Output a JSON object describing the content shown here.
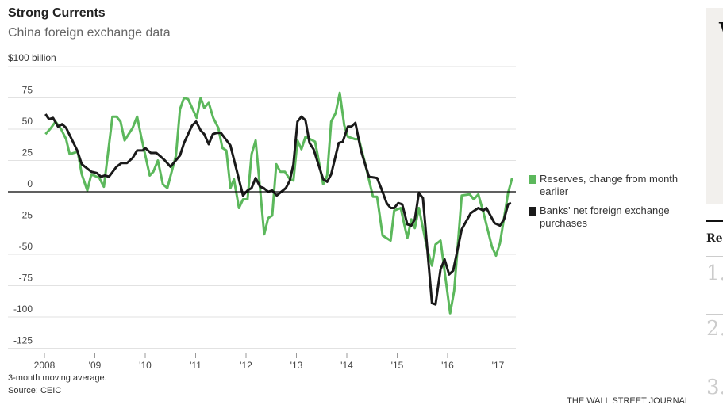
{
  "chart_data": {
    "type": "line",
    "title": "Strong Currents",
    "subtitle": "China foreign exchange data",
    "ylabel": "$100 billion",
    "ylim": [
      -125,
      100
    ],
    "yticks": [
      75,
      50,
      25,
      0,
      -25,
      -50,
      -75,
      -100,
      -125
    ],
    "ytick_labels": [
      "75",
      "50",
      "25",
      "0",
      "-25",
      "-50",
      "-75",
      "-100",
      "-125"
    ],
    "xlim": [
      2008,
      2017.3
    ],
    "xticks": [
      2008,
      2009,
      2010,
      2011,
      2012,
      2013,
      2014,
      2015,
      2016,
      2017
    ],
    "xtick_labels": [
      "2008",
      "'09",
      "'10",
      "'11",
      "'12",
      "'13",
      "'14",
      "'15",
      "'16",
      "'17"
    ],
    "grid": true,
    "legend_placement": "right",
    "series": [
      {
        "name": "Reserves, change from month earlier",
        "color": "#5cb85c",
        "points": [
          [
            2008.02,
            46
          ],
          [
            2008.11,
            50
          ],
          [
            2008.22,
            56
          ],
          [
            2008.33,
            50
          ],
          [
            2008.43,
            42
          ],
          [
            2008.5,
            30
          ],
          [
            2008.66,
            32
          ],
          [
            2008.74,
            14
          ],
          [
            2008.85,
            1
          ],
          [
            2008.93,
            14
          ],
          [
            2009.09,
            11
          ],
          [
            2009.18,
            4
          ],
          [
            2009.35,
            60
          ],
          [
            2009.43,
            60
          ],
          [
            2009.51,
            56
          ],
          [
            2009.59,
            41
          ],
          [
            2009.75,
            51
          ],
          [
            2009.84,
            60
          ],
          [
            2009.92,
            44
          ],
          [
            2010.09,
            13
          ],
          [
            2010.16,
            16
          ],
          [
            2010.25,
            25
          ],
          [
            2010.35,
            6
          ],
          [
            2010.44,
            3
          ],
          [
            2010.61,
            29
          ],
          [
            2010.69,
            66
          ],
          [
            2010.77,
            75
          ],
          [
            2010.85,
            74
          ],
          [
            2011.02,
            59
          ],
          [
            2011.1,
            75
          ],
          [
            2011.17,
            67
          ],
          [
            2011.26,
            71
          ],
          [
            2011.35,
            59
          ],
          [
            2011.45,
            51
          ],
          [
            2011.53,
            35
          ],
          [
            2011.61,
            33
          ],
          [
            2011.69,
            3
          ],
          [
            2011.76,
            10
          ],
          [
            2011.86,
            -13
          ],
          [
            2011.94,
            -6
          ],
          [
            2012.03,
            -6
          ],
          [
            2012.11,
            30
          ],
          [
            2012.19,
            41
          ],
          [
            2012.36,
            -34
          ],
          [
            2012.44,
            -21
          ],
          [
            2012.52,
            -19
          ],
          [
            2012.6,
            22
          ],
          [
            2012.68,
            16
          ],
          [
            2012.77,
            16
          ],
          [
            2012.87,
            10
          ],
          [
            2012.94,
            9
          ],
          [
            2013.02,
            41
          ],
          [
            2013.1,
            34
          ],
          [
            2013.18,
            44
          ],
          [
            2013.37,
            40
          ],
          [
            2013.53,
            6
          ],
          [
            2013.61,
            13
          ],
          [
            2013.69,
            56
          ],
          [
            2013.78,
            63
          ],
          [
            2013.86,
            79
          ],
          [
            2013.95,
            53
          ],
          [
            2014.02,
            44
          ],
          [
            2014.16,
            42
          ],
          [
            2014.24,
            42
          ],
          [
            2014.36,
            23
          ],
          [
            2014.52,
            -4
          ],
          [
            2014.6,
            -4
          ],
          [
            2014.71,
            -35
          ],
          [
            2014.87,
            -39
          ],
          [
            2014.94,
            -15
          ],
          [
            2015.07,
            -13
          ],
          [
            2015.2,
            -37
          ],
          [
            2015.28,
            -22
          ],
          [
            2015.35,
            -29
          ],
          [
            2015.43,
            -13
          ],
          [
            2015.59,
            -45
          ],
          [
            2015.69,
            -59
          ],
          [
            2015.76,
            -42
          ],
          [
            2015.86,
            -39
          ],
          [
            2016.05,
            -97
          ],
          [
            2016.13,
            -79
          ],
          [
            2016.28,
            -3
          ],
          [
            2016.44,
            -2
          ],
          [
            2016.52,
            -6
          ],
          [
            2016.61,
            -2
          ],
          [
            2016.72,
            -18
          ],
          [
            2016.88,
            -44
          ],
          [
            2016.96,
            -51
          ],
          [
            2017.04,
            -41
          ],
          [
            2017.2,
            -1
          ],
          [
            2017.28,
            11
          ]
        ]
      },
      {
        "name": "Banks' net foreign exchange purchases",
        "color": "#1a1a1a",
        "points": [
          [
            2008.02,
            62
          ],
          [
            2008.09,
            58
          ],
          [
            2008.17,
            59
          ],
          [
            2008.27,
            52
          ],
          [
            2008.35,
            54
          ],
          [
            2008.43,
            51
          ],
          [
            2008.65,
            33
          ],
          [
            2008.74,
            22
          ],
          [
            2008.93,
            16
          ],
          [
            2009.04,
            15
          ],
          [
            2009.12,
            12
          ],
          [
            2009.2,
            13
          ],
          [
            2009.28,
            12
          ],
          [
            2009.43,
            20
          ],
          [
            2009.53,
            23
          ],
          [
            2009.64,
            23
          ],
          [
            2009.75,
            27
          ],
          [
            2009.84,
            33
          ],
          [
            2009.95,
            33
          ],
          [
            2010.0,
            35
          ],
          [
            2010.11,
            31
          ],
          [
            2010.22,
            31
          ],
          [
            2010.31,
            28
          ],
          [
            2010.39,
            25
          ],
          [
            2010.5,
            20
          ],
          [
            2010.69,
            29
          ],
          [
            2010.77,
            39
          ],
          [
            2010.85,
            46
          ],
          [
            2010.93,
            53
          ],
          [
            2011.01,
            56
          ],
          [
            2011.1,
            49
          ],
          [
            2011.17,
            46
          ],
          [
            2011.26,
            38
          ],
          [
            2011.34,
            46
          ],
          [
            2011.42,
            47
          ],
          [
            2011.5,
            47
          ],
          [
            2011.69,
            37
          ],
          [
            2011.94,
            -3
          ],
          [
            2012.03,
            1
          ],
          [
            2012.11,
            3
          ],
          [
            2012.19,
            11
          ],
          [
            2012.28,
            4
          ],
          [
            2012.35,
            3
          ],
          [
            2012.44,
            0
          ],
          [
            2012.52,
            1
          ],
          [
            2012.61,
            -3
          ],
          [
            2012.79,
            3
          ],
          [
            2012.87,
            9
          ],
          [
            2012.94,
            22
          ],
          [
            2013.02,
            56
          ],
          [
            2013.1,
            60
          ],
          [
            2013.18,
            57
          ],
          [
            2013.26,
            39
          ],
          [
            2013.34,
            34
          ],
          [
            2013.53,
            10
          ],
          [
            2013.61,
            8
          ],
          [
            2013.69,
            14
          ],
          [
            2013.84,
            39
          ],
          [
            2013.92,
            40
          ],
          [
            2014.02,
            52
          ],
          [
            2014.09,
            52
          ],
          [
            2014.17,
            55
          ],
          [
            2014.28,
            33
          ],
          [
            2014.44,
            12
          ],
          [
            2014.6,
            11
          ],
          [
            2014.68,
            3
          ],
          [
            2014.79,
            -9
          ],
          [
            2014.87,
            -13
          ],
          [
            2014.94,
            -13
          ],
          [
            2015.02,
            -9
          ],
          [
            2015.1,
            -10
          ],
          [
            2015.2,
            -26
          ],
          [
            2015.28,
            -27
          ],
          [
            2015.35,
            -22
          ],
          [
            2015.43,
            -1
          ],
          [
            2015.51,
            -5
          ],
          [
            2015.69,
            -89
          ],
          [
            2015.76,
            -90
          ],
          [
            2015.86,
            -62
          ],
          [
            2015.94,
            -54
          ],
          [
            2016.03,
            -66
          ],
          [
            2016.11,
            -63
          ],
          [
            2016.28,
            -30
          ],
          [
            2016.46,
            -17
          ],
          [
            2016.61,
            -13
          ],
          [
            2016.71,
            -15
          ],
          [
            2016.77,
            -13
          ],
          [
            2016.93,
            -25
          ],
          [
            2017.04,
            -27
          ],
          [
            2017.12,
            -22
          ],
          [
            2017.2,
            -10
          ],
          [
            2017.26,
            -9
          ]
        ]
      }
    ],
    "notes": [
      "3-month moving average.",
      "Source: CEIC"
    ],
    "credit": "THE WALL STREET JOURNAL"
  },
  "sidebar": {
    "logo_letter": "W",
    "heading": "Re",
    "numbers": [
      "1.",
      "2.",
      "3."
    ]
  }
}
